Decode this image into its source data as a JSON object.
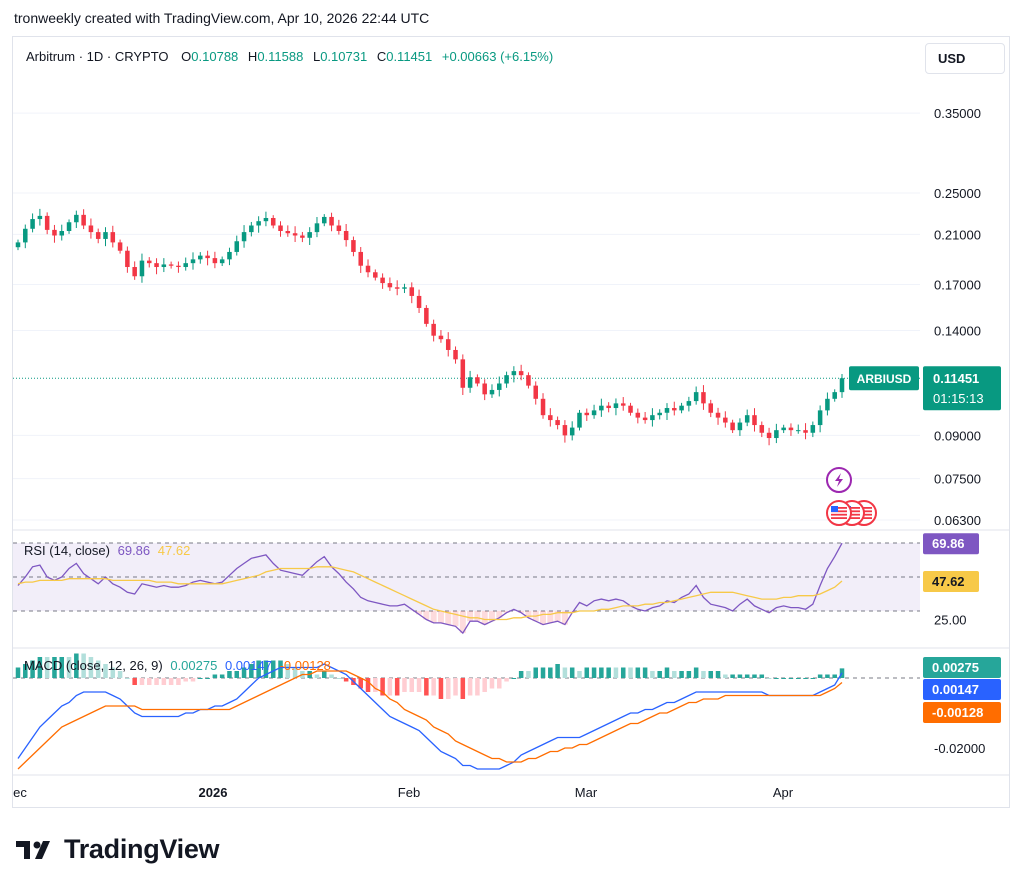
{
  "caption": "tronweekly created with TradingView.com, Apr 10, 2026 22:44 UTC",
  "legend": {
    "symbol": "Arbitrum · 1D · CRYPTO",
    "o_label": "O",
    "o_value": "0.10788",
    "h_label": "H",
    "h_value": "0.11588",
    "l_label": "L",
    "l_value": "0.10731",
    "c_label": "C",
    "c_value": "0.11451",
    "change": "+0.00663 (+6.15%)"
  },
  "currency_button": "USD",
  "brand": "TradingView",
  "colors": {
    "up": "#089981",
    "down": "#f23645",
    "rsi": "#7e57c2",
    "rsi_ma": "#f7c948",
    "macd": "#2962ff",
    "signal": "#ff6d00"
  },
  "chart_data": [
    {
      "type": "candlestick",
      "title": "Arbitrum · 1D · CRYPTO",
      "price_axis_ticks": [
        "0.35000",
        "0.25000",
        "0.21000",
        "0.17000",
        "0.14000",
        "0.09000",
        "0.07500",
        "0.06300"
      ],
      "time_axis_ticks": [
        "ec",
        "2026",
        "Feb",
        "Mar",
        "Apr"
      ],
      "ticker_label": "ARBIUSD",
      "last_price": "0.11451",
      "countdown": "01:15:13",
      "scale": "log",
      "close_series": [
        0.203,
        0.215,
        0.224,
        0.227,
        0.214,
        0.209,
        0.213,
        0.221,
        0.228,
        0.218,
        0.212,
        0.206,
        0.212,
        0.203,
        0.196,
        0.183,
        0.176,
        0.188,
        0.186,
        0.183,
        0.185,
        0.184,
        0.183,
        0.186,
        0.189,
        0.192,
        0.19,
        0.186,
        0.189,
        0.195,
        0.204,
        0.212,
        0.218,
        0.222,
        0.225,
        0.218,
        0.213,
        0.211,
        0.209,
        0.207,
        0.212,
        0.22,
        0.226,
        0.218,
        0.213,
        0.205,
        0.195,
        0.184,
        0.179,
        0.175,
        0.171,
        0.168,
        0.167,
        0.168,
        0.162,
        0.154,
        0.144,
        0.137,
        0.135,
        0.129,
        0.124,
        0.11,
        0.115,
        0.112,
        0.107,
        0.109,
        0.112,
        0.116,
        0.118,
        0.116,
        0.111,
        0.105,
        0.098,
        0.096,
        0.094,
        0.09,
        0.093,
        0.099,
        0.098,
        0.1,
        0.102,
        0.101,
        0.103,
        0.102,
        0.099,
        0.097,
        0.096,
        0.098,
        0.099,
        0.101,
        0.1,
        0.102,
        0.104,
        0.108,
        0.103,
        0.099,
        0.097,
        0.095,
        0.092,
        0.095,
        0.098,
        0.094,
        0.091,
        0.089,
        0.092,
        0.093,
        0.092,
        0.092,
        0.091,
        0.094,
        0.1,
        0.105,
        0.108,
        0.11451
      ]
    },
    {
      "type": "line",
      "title": "RSI (14, close)",
      "series": [
        {
          "name": "RSI",
          "last": "69.86"
        },
        {
          "name": "RSI-based MA",
          "last": "47.62"
        }
      ],
      "axis_tick": "25.00",
      "ylim": [
        0,
        100
      ],
      "rsi_values": [
        45,
        50,
        56,
        57,
        50,
        48,
        50,
        55,
        58,
        52,
        49,
        46,
        50,
        46,
        44,
        41,
        40,
        46,
        45,
        44,
        45,
        44,
        44,
        45,
        47,
        48,
        47,
        46,
        47,
        51,
        55,
        58,
        61,
        62,
        63,
        58,
        54,
        53,
        52,
        51,
        55,
        59,
        62,
        56,
        52,
        47,
        43,
        38,
        36,
        35,
        34,
        33,
        33,
        34,
        31,
        28,
        25,
        23,
        23,
        22,
        21,
        17,
        24,
        24,
        22,
        24,
        26,
        29,
        31,
        29,
        26,
        24,
        22,
        23,
        24,
        22,
        29,
        35,
        33,
        36,
        37,
        36,
        37,
        36,
        33,
        31,
        30,
        32,
        33,
        36,
        35,
        38,
        40,
        45,
        38,
        34,
        33,
        32,
        30,
        34,
        37,
        33,
        31,
        29,
        32,
        33,
        32,
        32,
        31,
        34,
        45,
        55,
        62,
        69.86
      ],
      "ma_values": [
        46,
        47,
        47,
        48,
        48,
        48,
        48,
        49,
        49,
        49,
        49,
        49,
        49,
        48,
        48,
        48,
        48,
        48,
        48,
        47,
        47,
        47,
        46,
        46,
        46,
        46,
        46,
        46,
        46,
        47,
        48,
        49,
        50,
        51,
        53,
        54,
        55,
        55,
        55,
        55,
        55,
        56,
        56,
        56,
        55,
        54,
        53,
        51,
        49,
        47,
        45,
        43,
        41,
        39,
        37,
        35,
        33,
        31,
        30,
        29,
        28,
        27,
        26,
        26,
        25,
        25,
        25,
        25,
        26,
        26,
        27,
        27,
        28,
        28,
        29,
        29,
        29,
        30,
        30,
        30,
        31,
        31,
        32,
        33,
        33,
        33,
        34,
        34,
        35,
        35,
        36,
        37,
        38,
        39,
        40,
        41,
        41,
        41,
        41,
        40,
        39,
        38,
        37,
        37,
        37,
        38,
        38,
        39,
        39,
        39,
        40,
        42,
        44,
        47.62
      ]
    },
    {
      "type": "bar+line",
      "title": "MACD (close, 12, 26, 9)",
      "series": [
        {
          "name": "Histogram",
          "last": "0.00275"
        },
        {
          "name": "MACD",
          "last": "0.00147"
        },
        {
          "name": "Signal",
          "last": "-0.00128"
        }
      ],
      "axis_tick": "-0.02000",
      "macd_values": [
        -0.023,
        -0.02,
        -0.017,
        -0.014,
        -0.012,
        -0.01,
        -0.008,
        -0.007,
        -0.005,
        -0.004,
        -0.004,
        -0.004,
        -0.004,
        -0.005,
        -0.006,
        -0.008,
        -0.01,
        -0.011,
        -0.011,
        -0.011,
        -0.011,
        -0.011,
        -0.011,
        -0.01,
        -0.01,
        -0.009,
        -0.009,
        -0.008,
        -0.008,
        -0.007,
        -0.006,
        -0.004,
        -0.002,
        0.0,
        0.001,
        0.002,
        0.003,
        0.003,
        0.003,
        0.003,
        0.003,
        0.003,
        0.004,
        0.003,
        0.002,
        0.001,
        -0.001,
        -0.003,
        -0.005,
        -0.007,
        -0.009,
        -0.011,
        -0.012,
        -0.013,
        -0.014,
        -0.015,
        -0.017,
        -0.019,
        -0.021,
        -0.022,
        -0.023,
        -0.025,
        -0.025,
        -0.026,
        -0.026,
        -0.026,
        -0.026,
        -0.025,
        -0.024,
        -0.022,
        -0.021,
        -0.02,
        -0.019,
        -0.018,
        -0.017,
        -0.017,
        -0.017,
        -0.017,
        -0.016,
        -0.015,
        -0.014,
        -0.013,
        -0.012,
        -0.011,
        -0.01,
        -0.01,
        -0.009,
        -0.009,
        -0.008,
        -0.007,
        -0.007,
        -0.006,
        -0.005,
        -0.004,
        -0.004,
        -0.004,
        -0.004,
        -0.004,
        -0.004,
        -0.004,
        -0.004,
        -0.004,
        -0.004,
        -0.005,
        -0.005,
        -0.005,
        -0.005,
        -0.005,
        -0.005,
        -0.005,
        -0.004,
        -0.003,
        -0.002,
        0.00147
      ],
      "signal_values": [
        -0.026,
        -0.024,
        -0.022,
        -0.02,
        -0.018,
        -0.016,
        -0.014,
        -0.013,
        -0.012,
        -0.011,
        -0.01,
        -0.009,
        -0.008,
        -0.008,
        -0.008,
        -0.008,
        -0.008,
        -0.009,
        -0.009,
        -0.009,
        -0.009,
        -0.009,
        -0.009,
        -0.009,
        -0.009,
        -0.009,
        -0.009,
        -0.009,
        -0.009,
        -0.009,
        -0.008,
        -0.007,
        -0.006,
        -0.005,
        -0.004,
        -0.003,
        -0.002,
        -0.001,
        0.0,
        0.001,
        0.001,
        0.002,
        0.002,
        0.002,
        0.002,
        0.002,
        0.001,
        0.0,
        -0.001,
        -0.003,
        -0.004,
        -0.006,
        -0.007,
        -0.009,
        -0.01,
        -0.011,
        -0.012,
        -0.014,
        -0.015,
        -0.016,
        -0.018,
        -0.019,
        -0.02,
        -0.021,
        -0.022,
        -0.023,
        -0.023,
        -0.024,
        -0.024,
        -0.024,
        -0.023,
        -0.023,
        -0.022,
        -0.021,
        -0.021,
        -0.02,
        -0.02,
        -0.019,
        -0.019,
        -0.018,
        -0.017,
        -0.016,
        -0.015,
        -0.014,
        -0.013,
        -0.013,
        -0.012,
        -0.011,
        -0.01,
        -0.01,
        -0.009,
        -0.008,
        -0.007,
        -0.007,
        -0.006,
        -0.006,
        -0.006,
        -0.005,
        -0.005,
        -0.005,
        -0.005,
        -0.005,
        -0.005,
        -0.005,
        -0.005,
        -0.005,
        -0.005,
        -0.005,
        -0.005,
        -0.005,
        -0.005,
        -0.004,
        -0.003,
        -0.00128
      ]
    }
  ]
}
